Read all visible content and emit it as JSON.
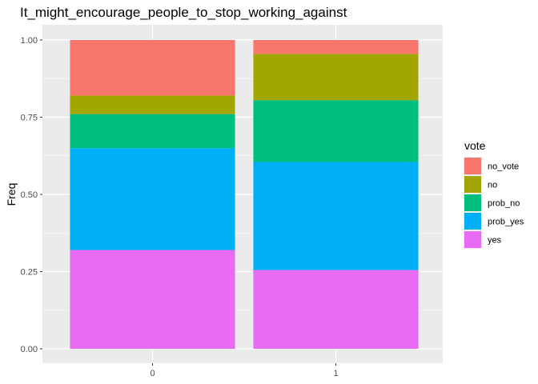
{
  "chart_data": {
    "type": "bar",
    "stacked": true,
    "title": "It_might_encourage_people_to_stop_working_against",
    "xlabel": "",
    "ylabel": "Freq",
    "categories": [
      "0",
      "1"
    ],
    "ylim": [
      0,
      1
    ],
    "yticks": [
      "0.00",
      "0.25",
      "0.50",
      "0.75",
      "1.00"
    ],
    "legend_title": "vote",
    "legend_position": "right",
    "grid": true,
    "series": [
      {
        "name": "no_vote",
        "color": "#F8766D",
        "values": [
          0.18,
          0.045
        ]
      },
      {
        "name": "no",
        "color": "#A3A500",
        "values": [
          0.06,
          0.15
        ]
      },
      {
        "name": "prob_no",
        "color": "#00BF7D",
        "values": [
          0.11,
          0.2
        ]
      },
      {
        "name": "prob_yes",
        "color": "#00B0F6",
        "values": [
          0.33,
          0.35
        ]
      },
      {
        "name": "yes",
        "color": "#E76BF3",
        "values": [
          0.32,
          0.255
        ]
      }
    ]
  }
}
